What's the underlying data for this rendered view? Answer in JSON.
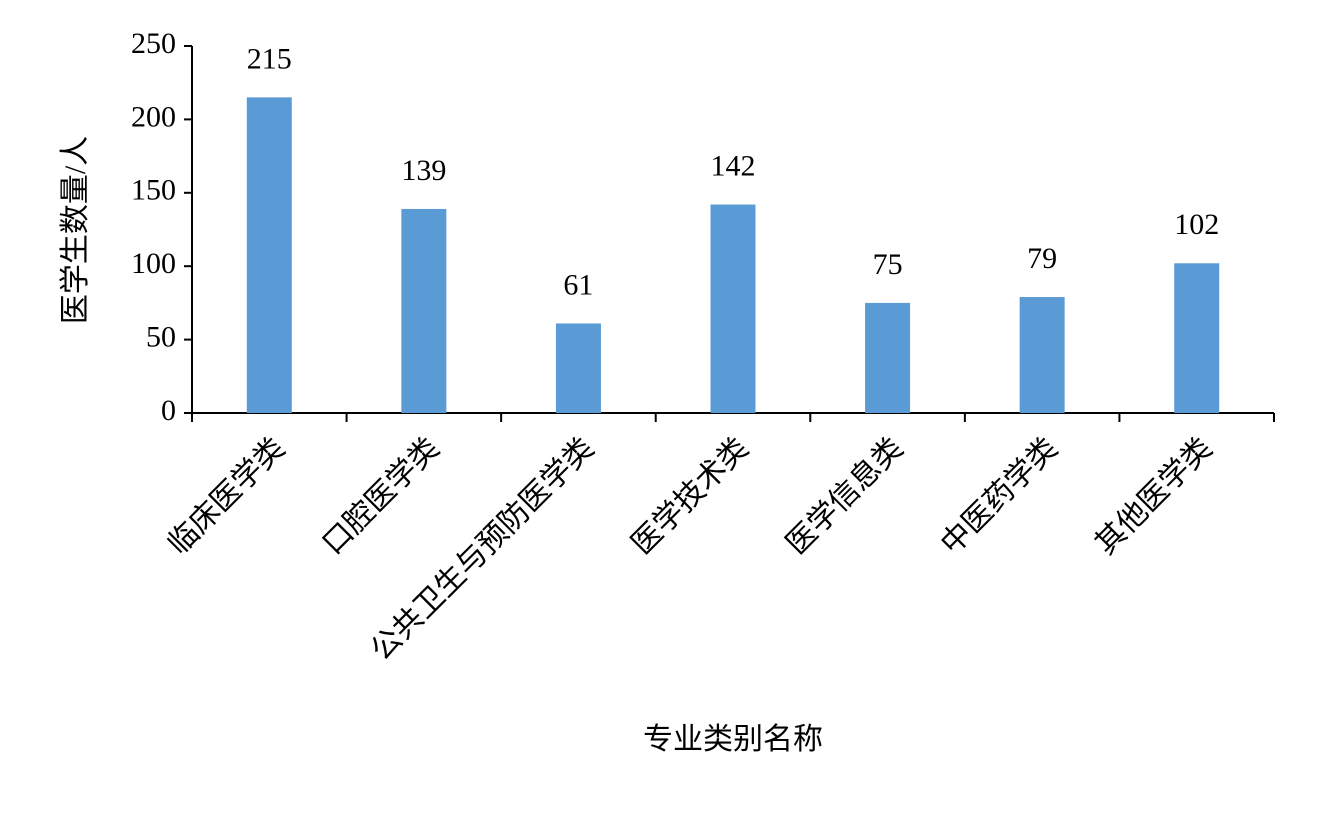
{
  "chart_data": {
    "type": "bar",
    "categories": [
      "临床医学类",
      "口腔医学类",
      "公共卫生与预防医学类",
      "医学技术类",
      "医学信息类",
      "中医药学类",
      "其他医学类"
    ],
    "values": [
      215,
      139,
      61,
      142,
      75,
      79,
      102
    ],
    "color": "#5b9bd5",
    "x_label": "专业类别名称",
    "y_label": "医学生数量/人",
    "ylim": [
      0,
      250
    ],
    "yticks": [
      0,
      50,
      100,
      150,
      200,
      250
    ],
    "grid": false
  }
}
